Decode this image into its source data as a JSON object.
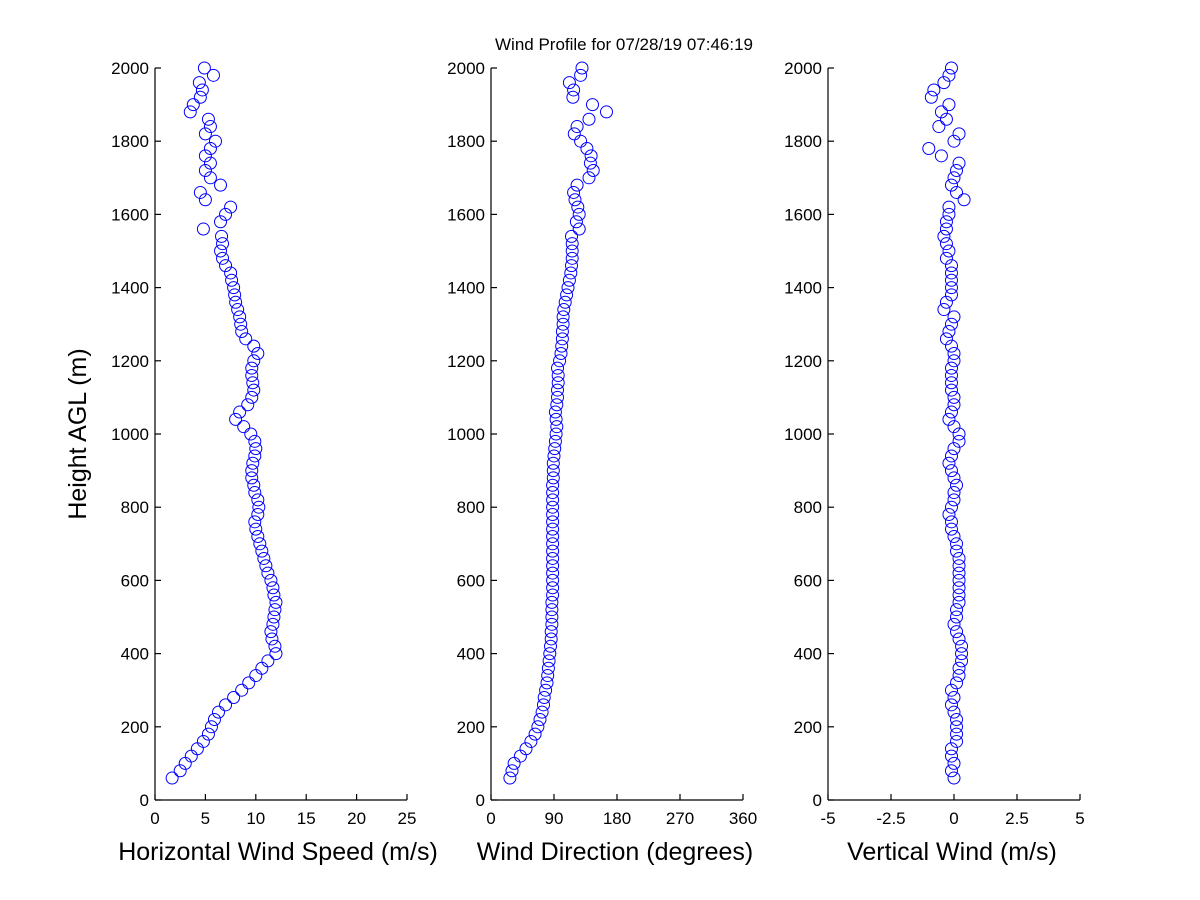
{
  "title": "Wind Profile for  07/28/19 07:46:19",
  "colors": {
    "marker": "#0000ff",
    "axes": "#000000"
  },
  "chart_data": [
    {
      "type": "scatter",
      "marker": "open-circle",
      "xlabel": "Horizontal Wind Speed (m/s)",
      "ylabel": "Height AGL (m)",
      "xlim": [
        0,
        25
      ],
      "ylim": [
        0,
        2000
      ],
      "xticks": [
        "0",
        "5",
        "10",
        "15",
        "20",
        "25"
      ],
      "yticks": [
        "0",
        "200",
        "400",
        "600",
        "800",
        "1000",
        "1200",
        "1400",
        "1600",
        "1800",
        "2000"
      ],
      "x": [
        1.7,
        2.5,
        3.0,
        3.6,
        4.2,
        4.8,
        5.3,
        5.6,
        5.9,
        6.3,
        7.0,
        7.8,
        8.6,
        9.3,
        10.0,
        10.6,
        11.2,
        12.0,
        11.9,
        11.6,
        11.5,
        11.7,
        11.8,
        11.9,
        12.0,
        11.8,
        11.7,
        11.5,
        11.2,
        11.0,
        10.8,
        10.6,
        10.4,
        10.2,
        10.0,
        9.9,
        10.2,
        10.3,
        10.2,
        9.9,
        9.8,
        9.6,
        9.6,
        9.7,
        9.9,
        10.0,
        9.9,
        9.5,
        8.8,
        8.0,
        8.4,
        9.2,
        9.6,
        9.8,
        9.7,
        9.6,
        9.6,
        9.8,
        10.2,
        9.8,
        9.0,
        8.6,
        8.5,
        8.4,
        8.2,
        8.0,
        7.9,
        7.8,
        7.6,
        7.5,
        7.0,
        6.7,
        6.5,
        6.7,
        6.6,
        4.8,
        6.5,
        7.0,
        7.5,
        5.0,
        4.5,
        6.5,
        5.5,
        5.0,
        5.5,
        5.0,
        5.5,
        6.0,
        5.0,
        5.5,
        5.3,
        3.5,
        3.8,
        4.5,
        4.7,
        4.4,
        5.8,
        4.9
      ]
    },
    {
      "type": "scatter",
      "marker": "open-circle",
      "xlabel": "Wind Direction (degrees)",
      "xlim": [
        0,
        360
      ],
      "ylim": [
        0,
        2000
      ],
      "xticks": [
        "0",
        "90",
        "180",
        "270",
        "360"
      ],
      "yticks": [
        "0",
        "200",
        "400",
        "600",
        "800",
        "1000",
        "1200",
        "1400",
        "1600",
        "1800",
        "2000"
      ],
      "x": [
        27,
        30,
        33,
        42,
        50,
        57,
        63,
        67,
        70,
        73,
        75,
        76,
        78,
        80,
        81,
        82,
        83,
        84,
        85,
        86,
        86,
        87,
        87,
        87,
        87,
        88,
        88,
        88,
        88,
        88,
        88,
        88,
        88,
        88,
        88,
        88,
        88,
        88,
        88,
        88,
        88,
        89,
        89,
        89,
        90,
        91,
        92,
        93,
        94,
        93,
        92,
        94,
        95,
        95,
        96,
        96,
        95,
        98,
        100,
        101,
        102,
        102,
        103,
        103,
        104,
        106,
        108,
        110,
        112,
        114,
        115,
        116,
        116,
        116,
        115,
        126,
        122,
        126,
        124,
        120,
        118,
        123,
        140,
        146,
        142,
        143,
        137,
        128,
        119,
        123,
        140,
        165,
        145,
        117,
        118,
        112,
        128,
        130
      ]
    },
    {
      "type": "scatter",
      "marker": "open-circle",
      "xlabel": "Vertical Wind (m/s)",
      "xlim": [
        -5,
        5
      ],
      "ylim": [
        0,
        2000
      ],
      "xticks": [
        "-5",
        "-2.5",
        "0",
        "2.5",
        "5"
      ],
      "yticks": [
        "0",
        "200",
        "400",
        "600",
        "800",
        "1000",
        "1200",
        "1400",
        "1600",
        "1800",
        "2000"
      ],
      "x": [
        0,
        -0.1,
        0,
        -0.1,
        -0.1,
        0.1,
        0.1,
        0.1,
        0.1,
        0,
        -0.1,
        0,
        -0.1,
        0.1,
        0.2,
        0.2,
        0.3,
        0.3,
        0.3,
        0.2,
        0.1,
        0,
        0.1,
        0.1,
        0.2,
        0.2,
        0.2,
        0.2,
        0.2,
        0.2,
        0.2,
        0.1,
        0.1,
        0,
        -0.1,
        -0.1,
        -0.2,
        -0.1,
        0,
        0,
        0.1,
        0,
        -0.1,
        -0.2,
        -0.1,
        0,
        0.2,
        0.2,
        0,
        -0.2,
        -0.1,
        0,
        0,
        -0.1,
        -0.1,
        -0.1,
        -0.1,
        0,
        0,
        -0.1,
        -0.3,
        -0.2,
        -0.1,
        0,
        -0.4,
        -0.3,
        -0.1,
        -0.1,
        -0.1,
        -0.1,
        -0.1,
        -0.3,
        -0.2,
        -0.3,
        -0.4,
        -0.3,
        -0.3,
        -0.2,
        -0.2,
        0.4,
        0.1,
        -0.1,
        0,
        0.1,
        0.2,
        -0.5,
        -1.0,
        0,
        0.2,
        -0.6,
        -0.3,
        -0.5,
        -0.2,
        -0.9,
        -0.8,
        -0.4,
        -0.2,
        -0.1
      ]
    }
  ],
  "heights": [
    60,
    80,
    100,
    120,
    140,
    160,
    180,
    200,
    220,
    240,
    260,
    280,
    300,
    320,
    340,
    360,
    380,
    400,
    420,
    440,
    460,
    480,
    500,
    520,
    540,
    560,
    580,
    600,
    620,
    640,
    660,
    680,
    700,
    720,
    740,
    760,
    780,
    800,
    820,
    840,
    860,
    880,
    900,
    920,
    940,
    960,
    980,
    1000,
    1020,
    1040,
    1060,
    1080,
    1100,
    1120,
    1140,
    1160,
    1180,
    1200,
    1220,
    1240,
    1260,
    1280,
    1300,
    1320,
    1340,
    1360,
    1380,
    1400,
    1420,
    1440,
    1460,
    1480,
    1500,
    1520,
    1540,
    1560,
    1580,
    1600,
    1620,
    1640,
    1660,
    1680,
    1700,
    1720,
    1740,
    1760,
    1780,
    1800,
    1820,
    1840,
    1860,
    1880,
    1900,
    1920,
    1940,
    1960,
    1980,
    2000
  ]
}
